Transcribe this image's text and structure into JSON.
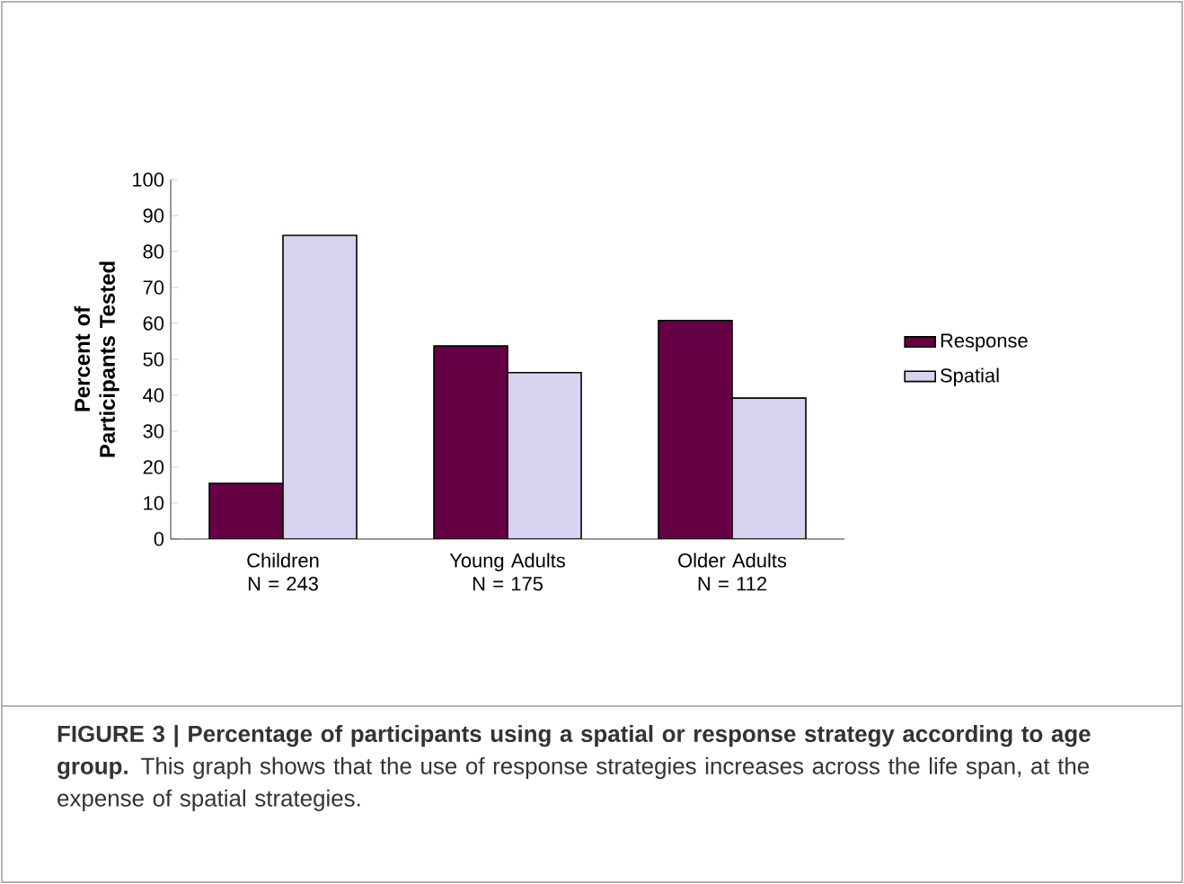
{
  "chart_data": {
    "type": "bar",
    "ylabel": "Percent of Participants Tested",
    "categories": [
      "Children N = 243",
      "Young Adults N = 175",
      "Older Adults N = 112"
    ],
    "series": [
      {
        "name": "Response",
        "color": "#660044",
        "values": [
          15.5,
          53.7,
          60.8
        ]
      },
      {
        "name": "Spatial",
        "color": "#d9d2ee",
        "values": [
          84.5,
          46.3,
          39.2
        ]
      }
    ],
    "ylim": [
      0,
      100
    ],
    "yticks": [
      0,
      10,
      20,
      30,
      40,
      50,
      60,
      70,
      80,
      90,
      100
    ],
    "grid": false,
    "legend": "right",
    "annotations": [
      "**FIGURE 3 | Percentage of participants using a spatial or response strategy according to age group.** This graph shows that the use of response strategies increases across the life span, at the expense of spatial strategies."
    ]
  }
}
